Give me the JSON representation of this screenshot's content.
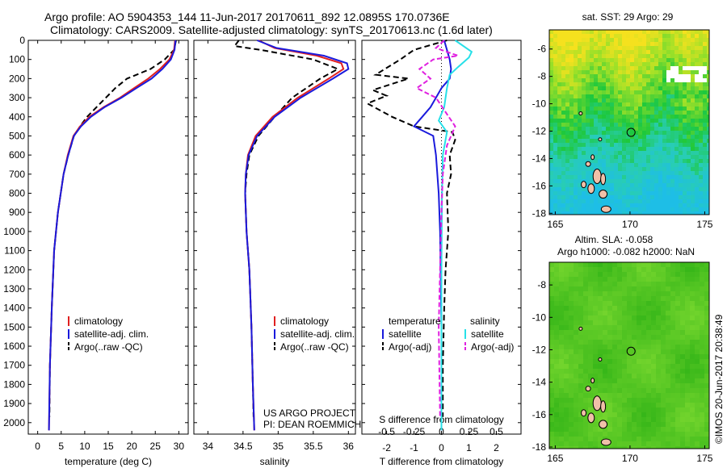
{
  "header": {
    "line1": "Argo profile: AO 5904353_144 11-Jun-2017 20170611_892 12.0895S 170.0736E",
    "line2": "Climatology: CARS2009. Satellite-adjusted climatology: synTS_20170613.nc (1.6d later)"
  },
  "colors": {
    "climatology": "#e02020",
    "satellite": "#1a1adc",
    "argo": "#000000",
    "sal_satellite": "#27e0e8",
    "sal_argo": "#e020e0"
  },
  "depth_ticks": [
    0,
    100,
    200,
    300,
    400,
    500,
    600,
    700,
    800,
    900,
    1000,
    1100,
    1200,
    1300,
    1400,
    1500,
    1600,
    1700,
    1800,
    1900,
    2000
  ],
  "chart_data": [
    {
      "type": "line",
      "xlabel": "temperature (deg C)",
      "xticks": [
        0,
        5,
        10,
        15,
        20,
        25,
        30
      ],
      "xlim": [
        -2,
        32
      ],
      "ylim": [
        2060,
        0
      ],
      "legend": [
        "climatology",
        "satellite-adj. clim.",
        "Argo(..raw -QC)"
      ],
      "series": [
        {
          "name": "climatology",
          "x": [
            29.2,
            29.0,
            28.0,
            26.0,
            23.5,
            20.5,
            17.5,
            14.0,
            11.0,
            9.0,
            7.6,
            6.4,
            5.5,
            4.3,
            3.5,
            3.0,
            2.6,
            2.4
          ],
          "y": [
            0,
            50,
            100,
            150,
            200,
            250,
            300,
            350,
            400,
            450,
            500,
            600,
            700,
            900,
            1100,
            1400,
            1700,
            2040
          ]
        },
        {
          "name": "satellite-adj. clim.",
          "x": [
            29.3,
            29.1,
            28.3,
            26.5,
            24.2,
            21.0,
            17.8,
            14.2,
            11.3,
            9.2,
            7.7,
            6.5,
            5.5,
            4.3,
            3.5,
            3.0,
            2.6,
            2.4
          ],
          "y": [
            0,
            50,
            100,
            150,
            200,
            250,
            300,
            350,
            400,
            450,
            500,
            600,
            700,
            900,
            1100,
            1400,
            1700,
            2040
          ]
        },
        {
          "name": "Argo(..raw -QC)",
          "x": [
            29.4,
            29.0,
            27.0,
            24.0,
            19.0,
            16.5,
            14.5,
            12.5,
            10.5,
            9.0,
            7.7,
            6.5,
            5.5,
            4.3,
            3.5,
            3.0,
            2.6,
            2.5
          ],
          "y": [
            0,
            50,
            100,
            150,
            200,
            250,
            300,
            350,
            400,
            450,
            500,
            600,
            700,
            900,
            1100,
            1400,
            1700,
            1970
          ]
        }
      ]
    },
    {
      "type": "line",
      "xlabel": "salinity",
      "xticks": [
        34,
        34.5,
        35,
        35.5,
        36
      ],
      "xlim": [
        33.8,
        36.1
      ],
      "ylim": [
        2060,
        0
      ],
      "legend": [
        "climatology",
        "satellite-adj. clim.",
        "Argo(..raw -QC)"
      ],
      "annotation": [
        "US ARGO PROJECT",
        "PI: DEAN ROEMMICH"
      ],
      "series": [
        {
          "name": "climatology",
          "x": [
            34.72,
            34.95,
            35.55,
            35.9,
            35.93,
            35.72,
            35.28,
            34.92,
            34.68,
            34.57,
            34.54,
            34.53,
            34.55,
            34.59,
            34.62,
            34.64,
            34.66
          ],
          "y": [
            0,
            40,
            80,
            120,
            150,
            200,
            300,
            400,
            500,
            600,
            700,
            800,
            1000,
            1200,
            1500,
            1800,
            2040
          ]
        },
        {
          "name": "satellite-adj. clim.",
          "x": [
            34.7,
            34.98,
            35.65,
            35.98,
            36.0,
            35.78,
            35.32,
            34.95,
            34.7,
            34.58,
            34.54,
            34.53,
            34.55,
            34.59,
            34.62,
            34.64,
            34.66
          ],
          "y": [
            0,
            40,
            80,
            120,
            150,
            200,
            300,
            400,
            500,
            600,
            700,
            800,
            1000,
            1200,
            1500,
            1800,
            2040
          ]
        },
        {
          "name": "Argo(..raw -QC)",
          "x": [
            34.44,
            34.38,
            34.75,
            35.5,
            35.85,
            35.6,
            35.2,
            34.95,
            34.72,
            34.59,
            34.55,
            34.53,
            34.55,
            34.59,
            34.62,
            34.64,
            34.65
          ],
          "y": [
            0,
            30,
            50,
            100,
            150,
            200,
            300,
            400,
            500,
            600,
            700,
            800,
            1000,
            1200,
            1500,
            1800,
            1970
          ]
        }
      ]
    },
    {
      "type": "line",
      "xlabel_bottom": "T difference from climatology",
      "xlabel_top": "S difference from climatology",
      "xticks_T": [
        -2,
        -1,
        0,
        1,
        2
      ],
      "xticks_S": [
        -0.5,
        -0.25,
        0,
        0.25,
        0.5
      ],
      "xlim": [
        -2.9,
        2.9
      ],
      "ylim": [
        2060,
        0
      ],
      "legend_groups": {
        "temperature": [
          "satellite",
          "Argo(-adj)"
        ],
        "salinity": [
          "satellite",
          "Argo(-adj)"
        ]
      },
      "series": [
        {
          "name": "T satellite",
          "x": [
            0.1,
            0.2,
            0.3,
            0.35,
            0.3,
            0.0,
            -0.2,
            -0.4,
            -0.7,
            -1.0,
            -0.3,
            -0.2,
            -0.1,
            -0.05,
            0,
            0
          ],
          "y": [
            0,
            50,
            100,
            150,
            200,
            250,
            300,
            350,
            400,
            450,
            500,
            600,
            800,
            1000,
            1500,
            2040
          ]
        },
        {
          "name": "T Argo(-adj)",
          "x": [
            0.2,
            -1.0,
            -1.5,
            -2.4,
            -1.2,
            -2.5,
            -2.0,
            -2.7,
            -1.8,
            -1.0,
            0.4,
            0.5,
            0.3,
            0.35,
            0.2,
            0.25,
            0.15,
            0.1,
            0.05,
            0.05
          ],
          "y": [
            0,
            50,
            100,
            180,
            200,
            260,
            290,
            330,
            400,
            450,
            480,
            520,
            600,
            700,
            800,
            1000,
            1200,
            1400,
            1700,
            1970
          ]
        },
        {
          "name": "S satellite",
          "x": [
            0.5,
            1.1,
            1.0,
            0.6,
            0.3,
            0.2,
            0.1,
            -0.1,
            0.2,
            0.05,
            0.02,
            0,
            0
          ],
          "y": [
            0,
            60,
            90,
            140,
            180,
            250,
            350,
            420,
            480,
            600,
            800,
            1200,
            2040
          ]
        },
        {
          "name": "S Argo(-adj)",
          "x": [
            0.1,
            -0.2,
            0.6,
            -0.3,
            -0.8,
            -0.4,
            -0.9,
            -0.2,
            0.5,
            0.2,
            0.05,
            0,
            -0.05,
            -0.1,
            -0.05
          ],
          "y": [
            0,
            40,
            80,
            100,
            150,
            200,
            250,
            300,
            450,
            550,
            700,
            900,
            1200,
            1500,
            1970
          ]
        }
      ]
    },
    {
      "type": "heatmap",
      "title": "sat. SST: 29 Argo: 29",
      "xticks": [
        165,
        170,
        175
      ],
      "yticks": [
        -6,
        -8,
        -10,
        -12,
        -14,
        -16,
        -18
      ],
      "xlim": [
        164.6,
        175.3
      ],
      "ylim": [
        -18.1,
        -4.6
      ],
      "marker": {
        "lon": 170.07,
        "lat": -12.09
      }
    },
    {
      "type": "heatmap",
      "title": "Altim. SLA: -0.058",
      "subtitle": "Argo h1000: -0.082 h2000: NaN",
      "xticks": [
        165,
        170,
        175
      ],
      "yticks": [
        -8,
        -10,
        -12,
        -14,
        -16,
        -18
      ],
      "xlim": [
        164.6,
        175.3
      ],
      "ylim": [
        -18.1,
        -6.6
      ],
      "marker": {
        "lon": 170.07,
        "lat": -12.09
      }
    }
  ],
  "watermark": "©IMOS 20-Jun-2017 20:38:49"
}
